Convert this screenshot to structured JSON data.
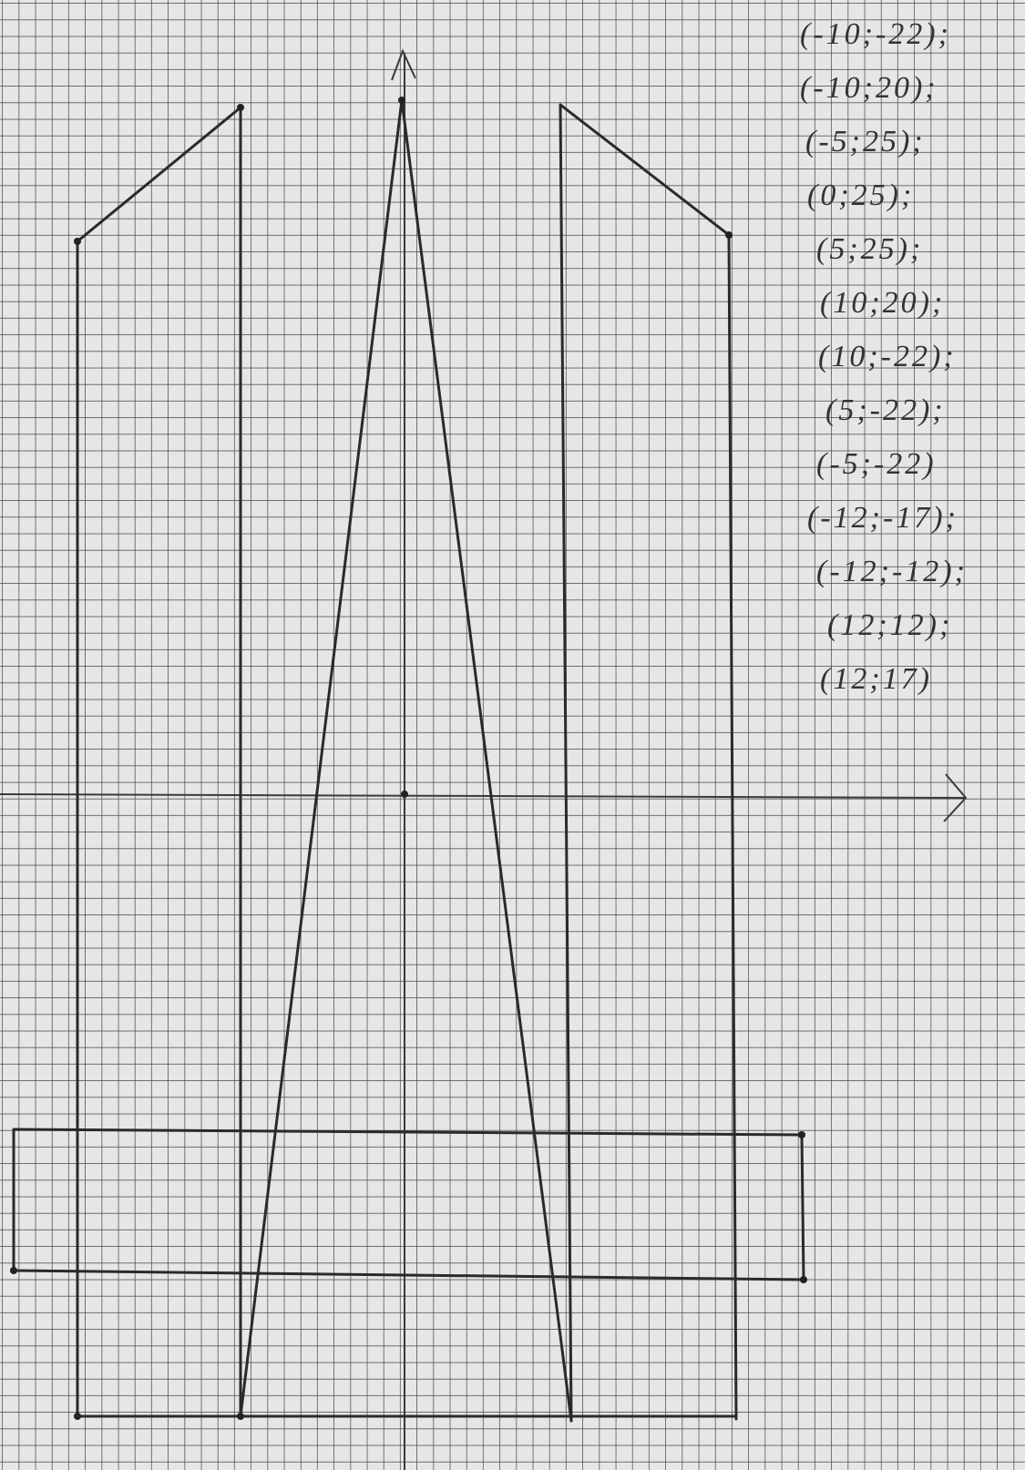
{
  "points": [
    "(-10;-22);",
    "(-10;20);",
    "(-5;25);",
    "(0;25);",
    "(5;25);",
    "(10;20);",
    "(10;-22);",
    "(5;-22);",
    "(-5;-22)",
    "(-12;-17);",
    "(-12;-12);",
    "(12;12);",
    "(12;17)"
  ]
}
